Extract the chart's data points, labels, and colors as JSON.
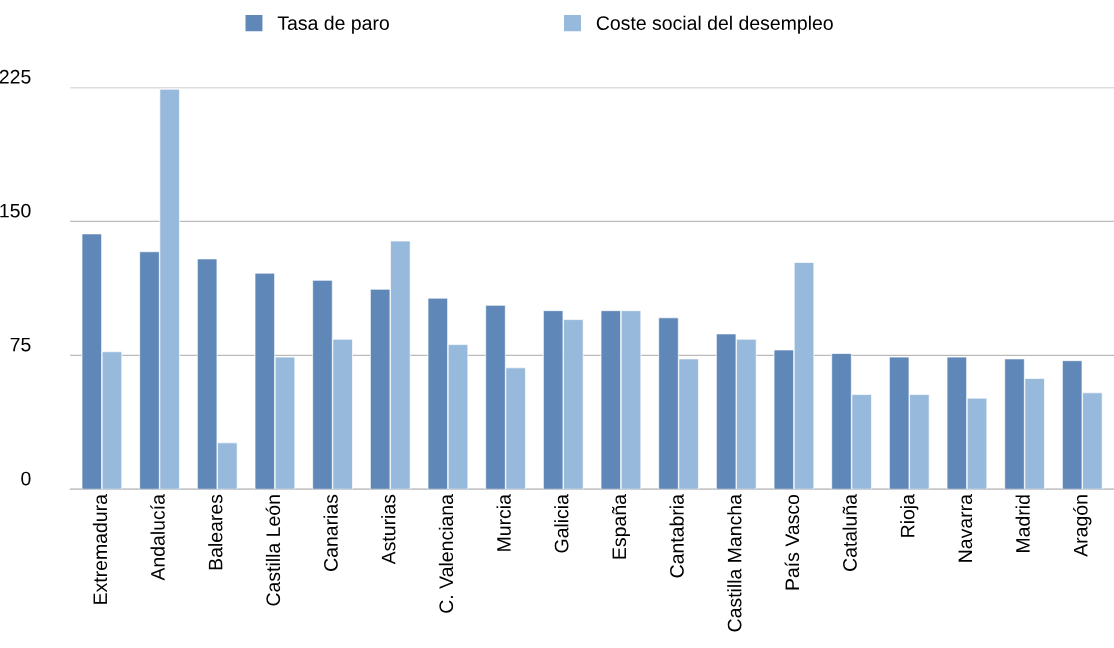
{
  "chart_data": {
    "type": "bar",
    "categories": [
      "Extremadura",
      "Andalucía",
      "Baleares",
      "Castilla León",
      "Canarias",
      "Asturias",
      "C. Valenciana",
      "Murcia",
      "Galicia",
      "España",
      "Cantabria",
      "Castilla Mancha",
      "País Vasco",
      "Cataluña",
      "Rioja",
      "Navarra",
      "Madrid",
      "Aragón"
    ],
    "series": [
      {
        "name": "Tasa de paro",
        "color": "#5f87b8",
        "values": [
          143,
          133,
          129,
          121,
          117,
          112,
          107,
          103,
          100,
          100,
          96,
          87,
          78,
          76,
          74,
          74,
          73,
          72
        ]
      },
      {
        "name": "Coste social del desempleo",
        "color": "#97b9db",
        "values": [
          77,
          224,
          26,
          74,
          84,
          139,
          81,
          68,
          95,
          100,
          73,
          84,
          127,
          53,
          53,
          51,
          62,
          54
        ]
      }
    ],
    "ylim": [
      0,
      225
    ],
    "yticks": [
      0,
      75,
      150,
      225
    ],
    "grid": "y",
    "legend": "top"
  }
}
